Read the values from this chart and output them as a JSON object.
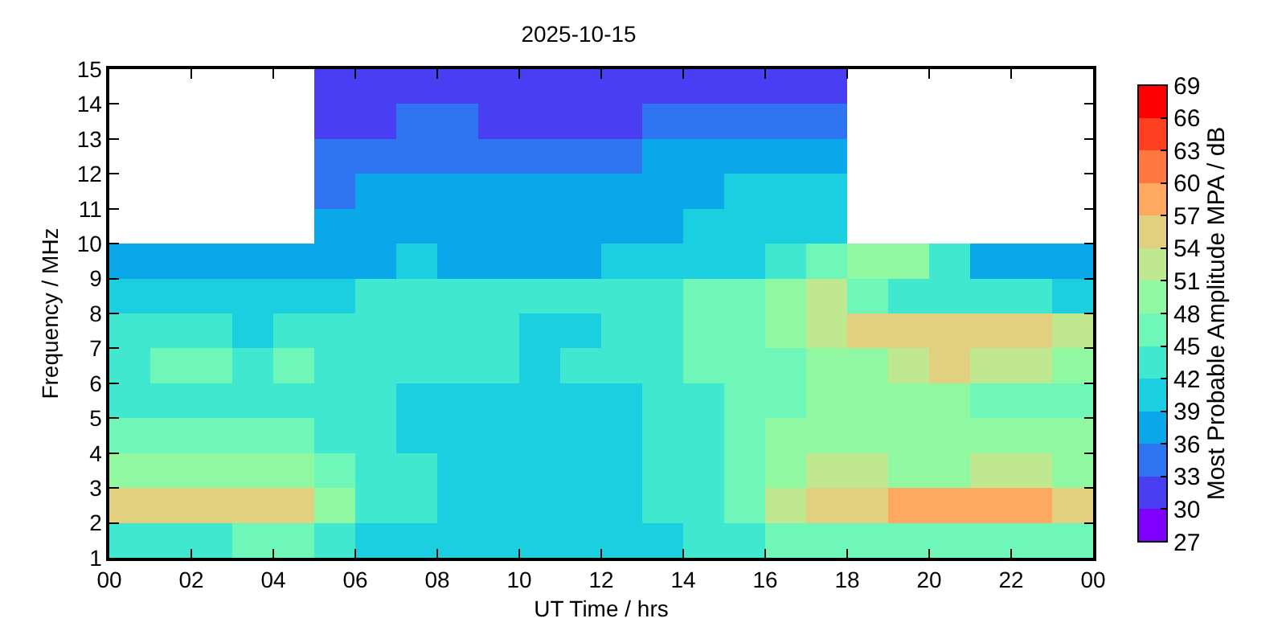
{
  "chart_data": {
    "type": "heatmap",
    "title": "2025-10-15",
    "xlabel": "UT Time / hrs",
    "ylabel": "Frequency / MHz",
    "clabel": "Most Probable Amplitude MPA / dB",
    "x": [
      0.5,
      1.5,
      2.5,
      3.5,
      4.5,
      5.5,
      6.5,
      7.5,
      8.5,
      9.5,
      10.5,
      11.5,
      12.5,
      13.5,
      14.5,
      15.5,
      16.5,
      17.5,
      18.5,
      19.5,
      20.5,
      21.5,
      22.5,
      23.5
    ],
    "cells": [
      [
        null,
        null,
        null,
        null,
        null,
        30,
        30,
        30,
        31,
        30,
        30,
        30,
        30,
        31,
        31,
        31,
        32,
        31,
        null,
        null,
        null,
        null,
        null,
        null
      ],
      [
        null,
        null,
        null,
        null,
        null,
        32,
        32,
        33,
        33,
        32,
        31,
        31,
        32,
        34,
        34,
        34,
        35,
        35,
        null,
        null,
        null,
        null,
        null,
        null
      ],
      [
        null,
        null,
        null,
        null,
        null,
        33,
        34,
        35,
        35,
        34,
        34,
        34,
        35,
        36,
        37,
        38,
        38,
        38,
        null,
        null,
        null,
        null,
        null,
        null
      ],
      [
        null,
        null,
        null,
        null,
        null,
        35,
        36,
        37,
        37,
        37,
        37,
        37,
        37,
        38,
        38,
        39,
        39,
        39,
        null,
        null,
        null,
        null,
        null,
        null
      ],
      [
        null,
        null,
        null,
        null,
        null,
        37,
        37,
        37,
        38,
        38,
        38,
        38,
        38,
        38,
        39,
        39,
        39,
        39,
        null,
        null,
        null,
        null,
        null,
        null
      ],
      [
        37,
        37,
        38,
        38,
        38,
        38,
        38,
        39,
        38,
        38,
        38,
        38,
        39,
        40,
        40,
        41,
        43,
        45,
        48,
        48,
        42,
        38,
        38,
        38
      ],
      [
        40,
        40,
        40,
        41,
        40,
        41,
        42,
        44,
        43,
        42,
        42,
        42,
        43,
        44,
        46,
        45,
        50,
        52,
        45,
        44,
        43,
        43,
        42,
        41
      ],
      [
        42,
        43,
        42,
        41,
        42,
        42,
        43,
        43,
        42,
        42,
        41,
        41,
        42,
        44,
        45,
        47,
        50,
        52,
        55,
        56,
        55,
        54,
        55,
        52
      ],
      [
        44,
        45,
        46,
        43,
        45,
        44,
        44,
        43,
        42,
        42,
        41,
        42,
        43,
        44,
        45,
        46,
        47,
        49,
        50,
        52,
        54,
        52,
        51,
        50
      ],
      [
        44,
        44,
        44,
        43,
        44,
        43,
        42,
        41,
        40,
        40,
        40,
        40,
        41,
        42,
        43,
        45,
        47,
        48,
        48,
        49,
        48,
        47,
        47,
        46
      ],
      [
        46,
        46,
        46,
        45,
        45,
        44,
        42,
        41,
        40,
        40,
        40,
        40,
        41,
        42,
        43,
        46,
        48,
        50,
        50,
        50,
        49,
        50,
        50,
        49
      ],
      [
        48,
        49,
        48,
        48,
        50,
        47,
        43,
        42,
        41,
        41,
        40,
        40,
        41,
        42,
        43,
        47,
        50,
        51,
        51,
        50,
        50,
        51,
        51,
        50
      ],
      [
        55,
        56,
        55,
        55,
        55,
        50,
        43,
        42,
        41,
        41,
        40,
        40,
        41,
        42,
        43,
        47,
        51,
        54,
        56,
        57,
        57,
        58,
        57,
        55
      ],
      [
        44,
        44,
        44,
        45,
        45,
        43,
        40,
        40,
        39,
        39,
        39,
        40,
        40,
        41,
        42,
        44,
        45,
        46,
        46,
        46,
        46,
        46,
        45,
        45
      ]
    ],
    "colors": [
      "#7f00ff",
      "#4a3ef3",
      "#2f74f0",
      "#0aa8e8",
      "#1ccfe0",
      "#40e8d0",
      "#6ef7b8",
      "#90f8a0",
      "#c0e890",
      "#e0d080",
      "#ffa860",
      "#ff7840",
      "#ff4020",
      "#ff0000"
    ],
    "clim": [
      27,
      69
    ],
    "cticks": [
      27,
      30,
      33,
      36,
      39,
      42,
      45,
      48,
      51,
      54,
      57,
      60,
      63,
      66,
      69
    ],
    "xlim": [
      0,
      24
    ],
    "xticks": [
      {
        "value": 0,
        "label": "00"
      },
      {
        "value": 2,
        "label": "02"
      },
      {
        "value": 4,
        "label": "04"
      },
      {
        "value": 6,
        "label": "06"
      },
      {
        "value": 8,
        "label": "08"
      },
      {
        "value": 10,
        "label": "10"
      },
      {
        "value": 12,
        "label": "12"
      },
      {
        "value": 14,
        "label": "14"
      },
      {
        "value": 16,
        "label": "16"
      },
      {
        "value": 18,
        "label": "18"
      },
      {
        "value": 20,
        "label": "20"
      },
      {
        "value": 22,
        "label": "22"
      },
      {
        "value": 24,
        "label": "00"
      }
    ],
    "ylim": [
      1,
      15
    ],
    "yticks": [
      1,
      2,
      3,
      4,
      5,
      6,
      7,
      8,
      9,
      10,
      11,
      12,
      13,
      14,
      15
    ]
  }
}
